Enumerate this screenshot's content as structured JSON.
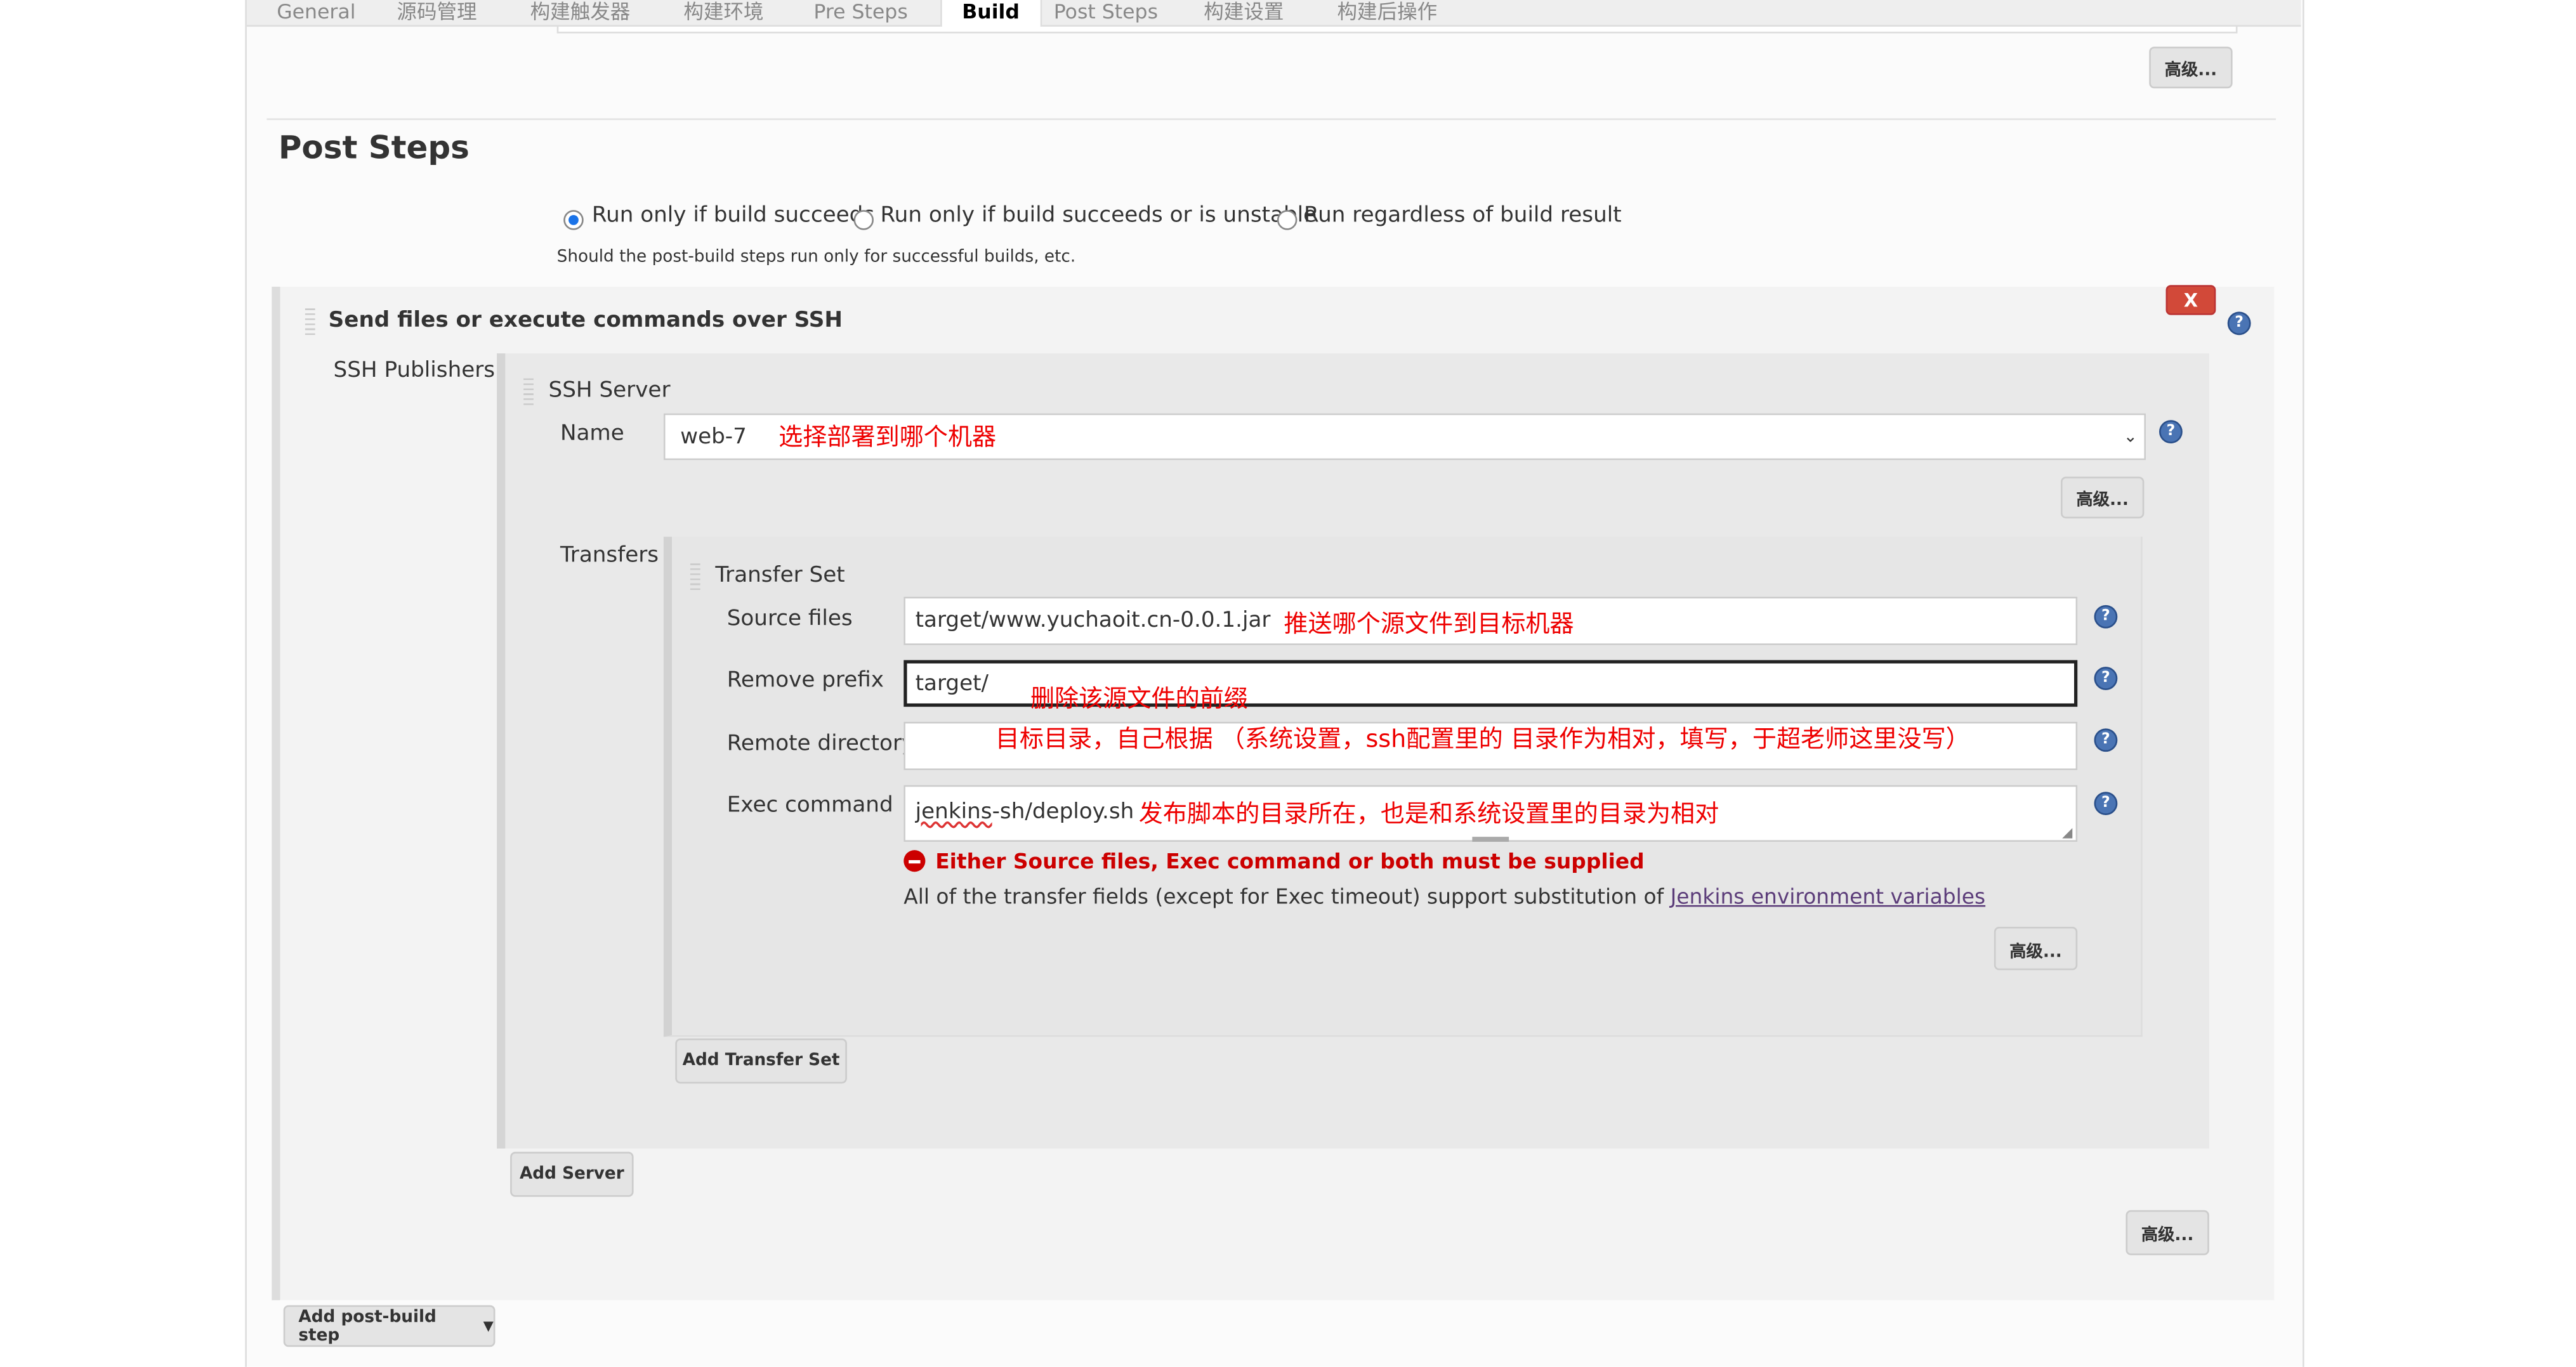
{
  "tabs": [
    "General",
    "源码管理",
    "构建触发器",
    "构建环境",
    "Pre Steps",
    "Build",
    "Post Steps",
    "构建设置",
    "构建后操作"
  ],
  "active_tab": "Build",
  "advanced_label": "高级...",
  "post_steps": {
    "title": "Post Steps",
    "options": [
      "Run only if build succeeds",
      "Run only if build succeeds or is unstable",
      "Run regardless of build result"
    ],
    "selected": 0,
    "help": "Should the post-build steps run only for successful builds, etc."
  },
  "ssh_step": {
    "title": "Send files or execute commands over SSH",
    "delete_label": "X",
    "publishers_label": "SSH Publishers",
    "server_title": "SSH Server",
    "name_label": "Name",
    "name_value": "web-7",
    "name_note": "选择部署到哪个机器",
    "transfers_label": "Transfers",
    "transfer_set_title": "Transfer Set",
    "source_label": "Source files",
    "source_value": "target/www.yuchaoit.cn-0.0.1.jar",
    "source_note": "推送哪个源文件到目标机器",
    "prefix_label": "Remove prefix",
    "prefix_value": "target/",
    "prefix_note": "删除该源文件的前缀",
    "remote_label": "Remote directory",
    "remote_value": "",
    "remote_note": "目标目录，自己根据 （系统设置，ssh配置里的 目录作为相对，填写，于超老师这里没写）",
    "exec_label": "Exec command",
    "exec_value_a": "jenkins",
    "exec_value_b": "-sh/deploy.sh",
    "exec_note": "发布脚本的目录所在，也是和系统设置里的目录为相对",
    "error": "Either Source files, Exec command or both must be supplied",
    "info": "All of the transfer fields (except for Exec timeout) support substitution of ",
    "info_link": "Jenkins environment variables",
    "add_transfer_set": "Add Transfer Set",
    "add_server": "Add Server"
  },
  "add_post_build_step": "Add post-build step",
  "colors": {
    "error": "#cc0000",
    "annotation": "#e00000",
    "help": "#4a74b4",
    "delete": "#d24939"
  }
}
